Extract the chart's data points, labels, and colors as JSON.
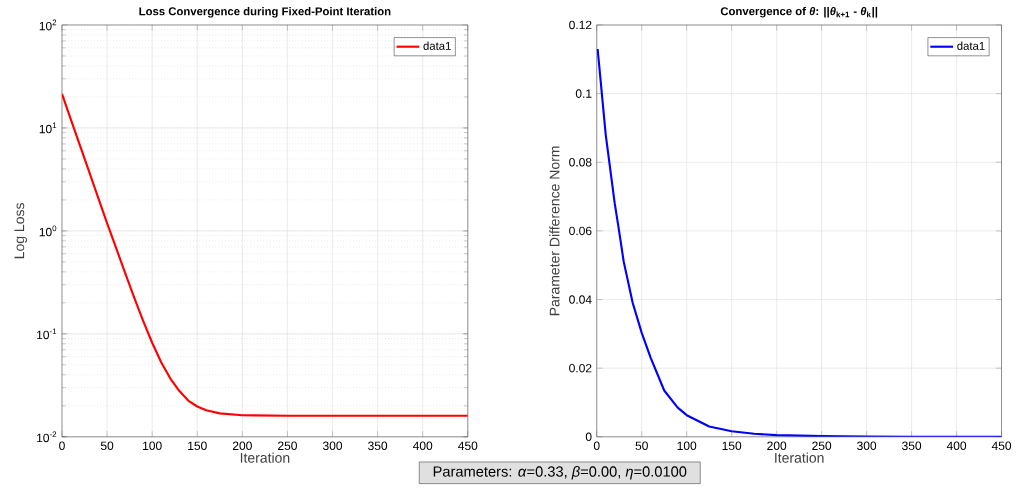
{
  "chart_data": [
    {
      "type": "line",
      "title": "Loss Convergence during Fixed-Point Iteration",
      "xlabel": "Iteration",
      "ylabel": "Log Loss",
      "log": "y",
      "grid": true,
      "legend": "top right",
      "line_style": "solid",
      "marker": "none",
      "xlim": [
        0,
        450
      ],
      "xticks": [
        0,
        50,
        100,
        150,
        200,
        250,
        300,
        350,
        400,
        450
      ],
      "ylim": [
        0.01,
        100
      ],
      "yticks": [
        {
          "value": 0.01,
          "label": "10$^{-2}$"
        },
        {
          "value": 0.1,
          "label": "10$^{-1}$"
        },
        {
          "value": 1,
          "label": "10$^{0}$"
        },
        {
          "value": 10,
          "label": "10$^{1}$"
        },
        {
          "value": 100,
          "label": "10$^{2}$"
        }
      ],
      "x": [
        0,
        10,
        20,
        30,
        40,
        50,
        60,
        70,
        80,
        90,
        100,
        110,
        120,
        130,
        140,
        150,
        160,
        175,
        200,
        250,
        300,
        350,
        400,
        450
      ],
      "series": [
        {
          "name": "data1",
          "color": "#ff0000",
          "values": [
            21.4,
            12.0,
            6.74,
            3.78,
            2.12,
            1.19,
            0.684,
            0.391,
            0.226,
            0.134,
            0.082,
            0.053,
            0.037,
            0.028,
            0.0225,
            0.0197,
            0.0181,
            0.0169,
            0.0162,
            0.016,
            0.016,
            0.016,
            0.016,
            0.016
          ]
        }
      ],
      "annotations": [
        "Parameters:  *α*=0.33,  *β*=0.00,  *η*=0.0100"
      ]
    },
    {
      "type": "line",
      "title": "Convergence of *θ*: ||*θ*$_{k+1}$ - *θ*$_{k}$||",
      "xlabel": "Iteration",
      "ylabel": "Parameter Difference Norm",
      "grid": true,
      "legend": "top right",
      "line_style": "solid",
      "marker": "none",
      "xlim": [
        0,
        450
      ],
      "xticks": [
        0,
        50,
        100,
        150,
        200,
        250,
        300,
        350,
        400,
        450
      ],
      "ylim": [
        0,
        0.12
      ],
      "yticks": [
        0,
        0.02,
        0.04,
        0.06,
        0.08,
        0.1,
        0.12
      ],
      "x": [
        1,
        10,
        20,
        25,
        30,
        40,
        50,
        60,
        75,
        90,
        100,
        125,
        150,
        175,
        200,
        250,
        300,
        350,
        450
      ],
      "series": [
        {
          "name": "data1",
          "color": "#0000ff",
          "values": [
            0.113,
            0.088,
            0.068,
            0.0597,
            0.051,
            0.039,
            0.0303,
            0.023,
            0.0135,
            0.0085,
            0.0063,
            0.003,
            0.0016,
            0.0009,
            0.0005,
            0.0002,
            0.0001,
            0,
            0
          ]
        }
      ]
    }
  ]
}
